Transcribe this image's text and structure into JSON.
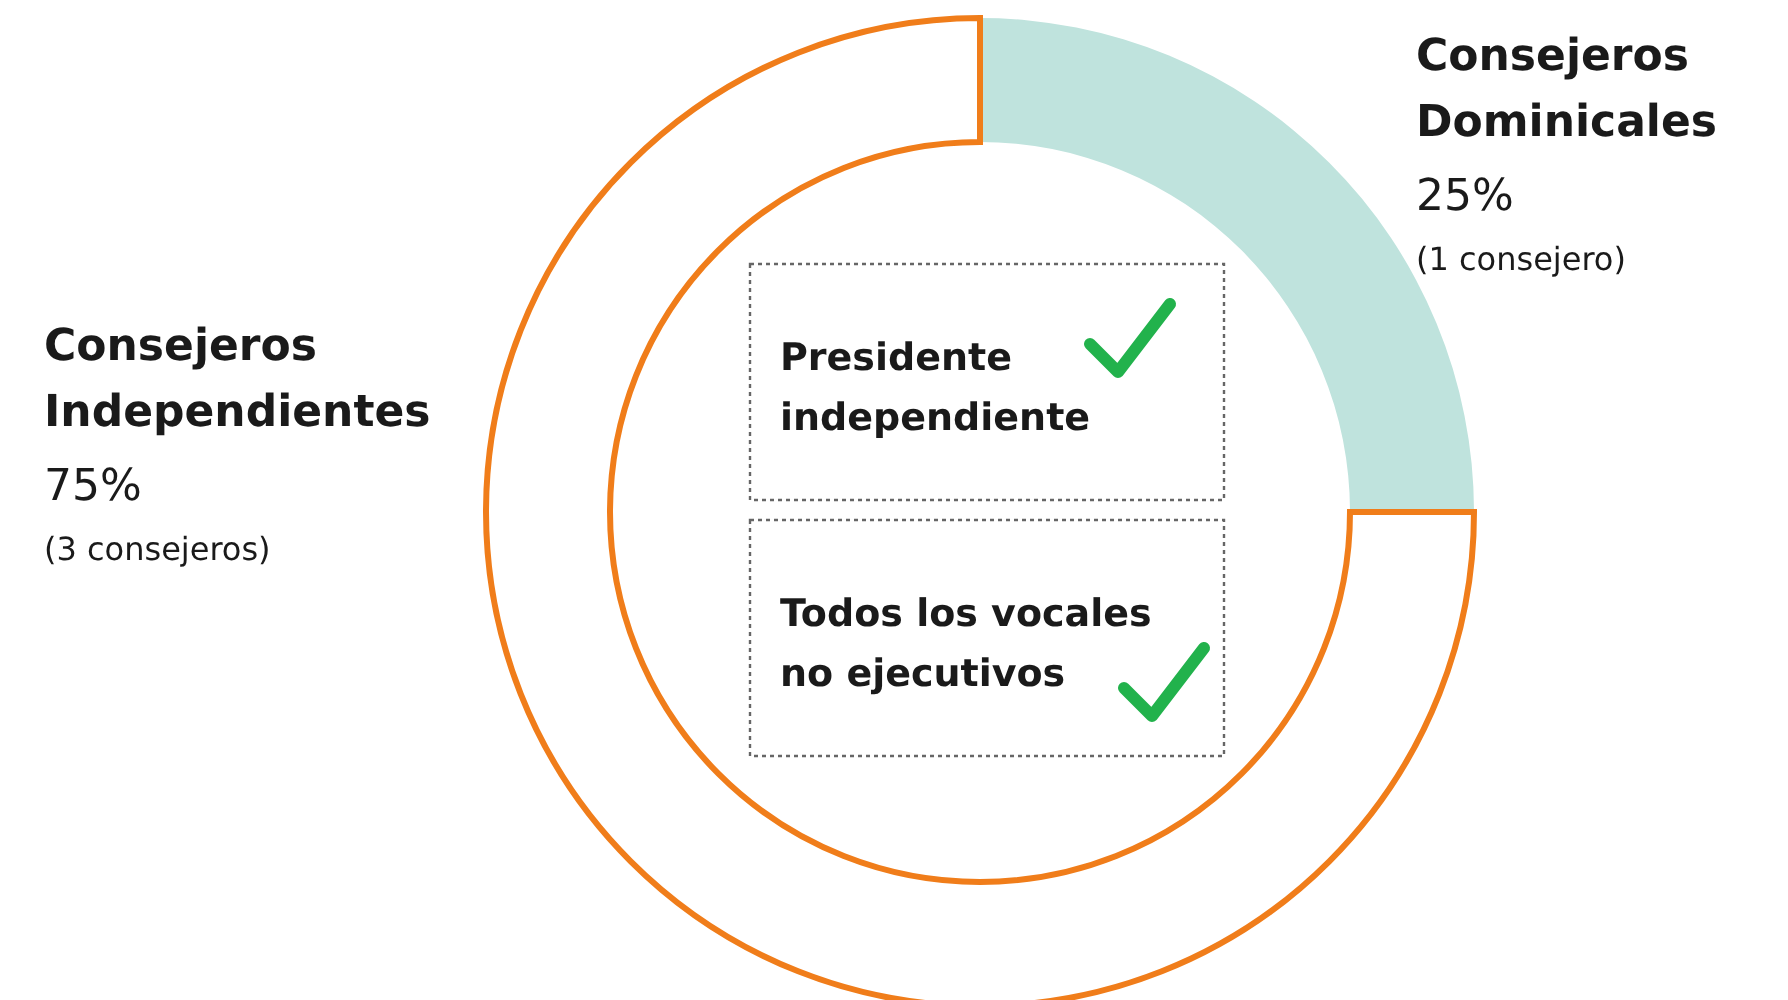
{
  "chart_data": {
    "type": "donut",
    "categories": [
      "Consejeros Dominicales",
      "Consejeros Independientes"
    ],
    "values": [
      25,
      75
    ],
    "colors": [
      "#bfe3dd",
      "#ffffff"
    ],
    "value_labels": [
      "25%",
      "75%"
    ],
    "annotations": [
      "(1 consejero)",
      "(3 consejeros)",
      "Presidente independiente",
      "Todos los vocales no ejecutivos"
    ]
  }
}
